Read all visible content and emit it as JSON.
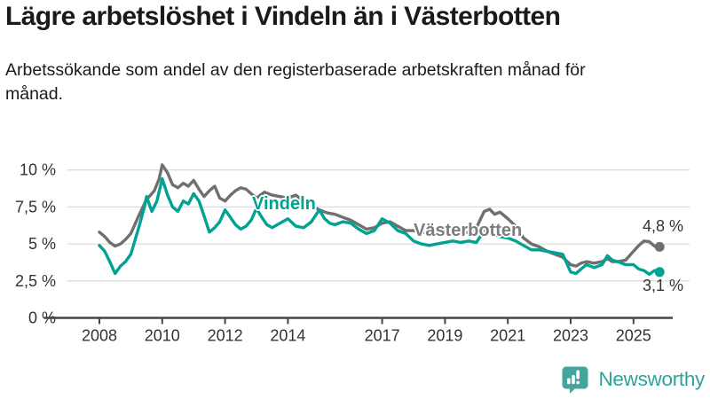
{
  "header": {
    "title": "Lägre arbetslöshet i Vindeln än i Västerbotten",
    "subtitle": "Arbetssökande som andel av den registerbaserade arbetskraften månad för månad."
  },
  "chart_data": {
    "type": "line",
    "title": "Lägre arbetslöshet i Vindeln än i Västerbotten",
    "subtitle": "Arbetssökande som andel av den registerbaserade arbetskraften månad för månad.",
    "unit": "%",
    "grid": true,
    "legend_position": "inline-labels",
    "xlim": [
      2007.9,
      2026.1
    ],
    "ylim": [
      0,
      10.8
    ],
    "x_ticks": [
      2008,
      2010,
      2012,
      2014,
      2017,
      2019,
      2021,
      2023,
      2025
    ],
    "x_tick_labels": [
      "2008",
      "2010",
      "2012",
      "2014",
      "2017",
      "2019",
      "2021",
      "2023",
      "2025"
    ],
    "y_ticks": [
      0,
      2.5,
      5,
      7.5,
      10
    ],
    "y_tick_labels": [
      "0 %",
      "2,5 %",
      "5 %",
      "7,5 %",
      "10 %"
    ],
    "colors": {
      "grid": "#dcdcdc",
      "axis": "#454545",
      "tick_text": "#333333"
    },
    "series": [
      {
        "id": "vindeln",
        "name": "Vindeln",
        "color": "#00a392",
        "end_label": "3,1 %",
        "end_value": 3.1,
        "points": [
          [
            2008.0,
            4.9
          ],
          [
            2008.17,
            4.5
          ],
          [
            2008.33,
            3.8
          ],
          [
            2008.5,
            3.0
          ],
          [
            2008.67,
            3.5
          ],
          [
            2008.83,
            3.8
          ],
          [
            2009.0,
            4.3
          ],
          [
            2009.25,
            6.1
          ],
          [
            2009.42,
            7.4
          ],
          [
            2009.5,
            8.2
          ],
          [
            2009.67,
            7.2
          ],
          [
            2009.83,
            7.9
          ],
          [
            2010.0,
            9.4
          ],
          [
            2010.17,
            8.3
          ],
          [
            2010.33,
            7.5
          ],
          [
            2010.5,
            7.2
          ],
          [
            2010.67,
            7.9
          ],
          [
            2010.83,
            7.7
          ],
          [
            2011.0,
            8.4
          ],
          [
            2011.17,
            7.9
          ],
          [
            2011.33,
            6.9
          ],
          [
            2011.5,
            5.8
          ],
          [
            2011.67,
            6.1
          ],
          [
            2011.83,
            6.5
          ],
          [
            2012.0,
            7.3
          ],
          [
            2012.17,
            6.8
          ],
          [
            2012.33,
            6.3
          ],
          [
            2012.5,
            6.0
          ],
          [
            2012.67,
            6.2
          ],
          [
            2012.83,
            6.6
          ],
          [
            2013.0,
            7.4
          ],
          [
            2013.17,
            6.8
          ],
          [
            2013.33,
            6.3
          ],
          [
            2013.5,
            6.1
          ],
          [
            2013.75,
            6.4
          ],
          [
            2014.0,
            6.7
          ],
          [
            2014.25,
            6.2
          ],
          [
            2014.5,
            6.1
          ],
          [
            2014.75,
            6.5
          ],
          [
            2015.0,
            7.3
          ],
          [
            2015.17,
            6.7
          ],
          [
            2015.33,
            6.4
          ],
          [
            2015.5,
            6.3
          ],
          [
            2015.75,
            6.5
          ],
          [
            2016.0,
            6.4
          ],
          [
            2016.25,
            6.0
          ],
          [
            2016.5,
            5.7
          ],
          [
            2016.75,
            5.9
          ],
          [
            2017.0,
            6.7
          ],
          [
            2017.25,
            6.4
          ],
          [
            2017.5,
            5.9
          ],
          [
            2017.75,
            5.7
          ],
          [
            2018.0,
            5.2
          ],
          [
            2018.25,
            5.0
          ],
          [
            2018.5,
            4.9
          ],
          [
            2018.75,
            5.0
          ],
          [
            2019.0,
            5.1
          ],
          [
            2019.25,
            5.2
          ],
          [
            2019.5,
            5.1
          ],
          [
            2019.75,
            5.2
          ],
          [
            2020.0,
            5.1
          ],
          [
            2020.25,
            5.9
          ],
          [
            2020.5,
            5.7
          ],
          [
            2020.75,
            5.5
          ],
          [
            2021.0,
            5.4
          ],
          [
            2021.25,
            5.2
          ],
          [
            2021.5,
            4.9
          ],
          [
            2021.75,
            4.6
          ],
          [
            2022.0,
            4.6
          ],
          [
            2022.25,
            4.5
          ],
          [
            2022.5,
            4.4
          ],
          [
            2022.75,
            4.3
          ],
          [
            2023.0,
            3.1
          ],
          [
            2023.17,
            3.0
          ],
          [
            2023.33,
            3.3
          ],
          [
            2023.5,
            3.6
          ],
          [
            2023.75,
            3.4
          ],
          [
            2024.0,
            3.6
          ],
          [
            2024.17,
            4.2
          ],
          [
            2024.33,
            3.9
          ],
          [
            2024.5,
            3.8
          ],
          [
            2024.75,
            3.6
          ],
          [
            2025.0,
            3.6
          ],
          [
            2025.17,
            3.3
          ],
          [
            2025.33,
            3.2
          ],
          [
            2025.5,
            2.95
          ],
          [
            2025.67,
            3.2
          ],
          [
            2025.83,
            3.1
          ]
        ]
      },
      {
        "id": "vasterbotten",
        "name": "Västerbotten",
        "color": "#6f6f6f",
        "end_label": "4,8 %",
        "end_value": 4.8,
        "points": [
          [
            2008.0,
            5.8
          ],
          [
            2008.17,
            5.5
          ],
          [
            2008.33,
            5.1
          ],
          [
            2008.5,
            4.85
          ],
          [
            2008.67,
            5.0
          ],
          [
            2008.83,
            5.3
          ],
          [
            2009.0,
            5.7
          ],
          [
            2009.25,
            6.9
          ],
          [
            2009.5,
            8.0
          ],
          [
            2009.75,
            8.6
          ],
          [
            2009.9,
            9.4
          ],
          [
            2010.0,
            10.35
          ],
          [
            2010.17,
            9.8
          ],
          [
            2010.33,
            9.0
          ],
          [
            2010.5,
            8.8
          ],
          [
            2010.67,
            9.1
          ],
          [
            2010.83,
            8.9
          ],
          [
            2011.0,
            9.3
          ],
          [
            2011.17,
            8.7
          ],
          [
            2011.33,
            8.2
          ],
          [
            2011.5,
            8.6
          ],
          [
            2011.67,
            8.9
          ],
          [
            2011.83,
            8.1
          ],
          [
            2012.0,
            7.9
          ],
          [
            2012.17,
            8.3
          ],
          [
            2012.33,
            8.6
          ],
          [
            2012.5,
            8.8
          ],
          [
            2012.67,
            8.7
          ],
          [
            2012.83,
            8.4
          ],
          [
            2013.0,
            8.1
          ],
          [
            2013.25,
            8.5
          ],
          [
            2013.5,
            8.3
          ],
          [
            2013.75,
            8.2
          ],
          [
            2014.0,
            8.1
          ],
          [
            2014.25,
            8.3
          ],
          [
            2014.5,
            7.9
          ],
          [
            2014.75,
            7.6
          ],
          [
            2015.0,
            7.3
          ],
          [
            2015.25,
            7.1
          ],
          [
            2015.5,
            7.0
          ],
          [
            2015.75,
            6.8
          ],
          [
            2016.0,
            6.6
          ],
          [
            2016.25,
            6.3
          ],
          [
            2016.5,
            6.0
          ],
          [
            2016.75,
            6.1
          ],
          [
            2017.0,
            6.4
          ],
          [
            2017.25,
            6.5
          ],
          [
            2017.5,
            6.2
          ],
          [
            2017.75,
            5.9
          ],
          [
            2018.0,
            5.9
          ],
          [
            2018.25,
            5.8
          ],
          [
            2018.5,
            5.7
          ],
          [
            2018.75,
            5.8
          ],
          [
            2019.0,
            5.9
          ],
          [
            2019.25,
            5.8
          ],
          [
            2019.5,
            5.7
          ],
          [
            2019.75,
            5.8
          ],
          [
            2020.0,
            6.1
          ],
          [
            2020.25,
            7.2
          ],
          [
            2020.42,
            7.35
          ],
          [
            2020.58,
            7.0
          ],
          [
            2020.75,
            7.15
          ],
          [
            2021.0,
            6.7
          ],
          [
            2021.25,
            6.2
          ],
          [
            2021.5,
            5.4
          ],
          [
            2021.75,
            5.0
          ],
          [
            2022.0,
            4.8
          ],
          [
            2022.25,
            4.5
          ],
          [
            2022.5,
            4.3
          ],
          [
            2022.75,
            4.1
          ],
          [
            2023.0,
            3.6
          ],
          [
            2023.17,
            3.5
          ],
          [
            2023.33,
            3.7
          ],
          [
            2023.5,
            3.8
          ],
          [
            2023.75,
            3.7
          ],
          [
            2024.0,
            3.8
          ],
          [
            2024.17,
            4.0
          ],
          [
            2024.33,
            3.8
          ],
          [
            2024.5,
            3.8
          ],
          [
            2024.75,
            3.9
          ],
          [
            2025.0,
            4.5
          ],
          [
            2025.17,
            4.9
          ],
          [
            2025.33,
            5.2
          ],
          [
            2025.5,
            5.15
          ],
          [
            2025.67,
            4.85
          ],
          [
            2025.83,
            4.8
          ]
        ]
      }
    ]
  },
  "footer": {
    "brand": "Newsworthy",
    "brand_color": "#2fa39b",
    "icon_color": "#43a59e"
  }
}
